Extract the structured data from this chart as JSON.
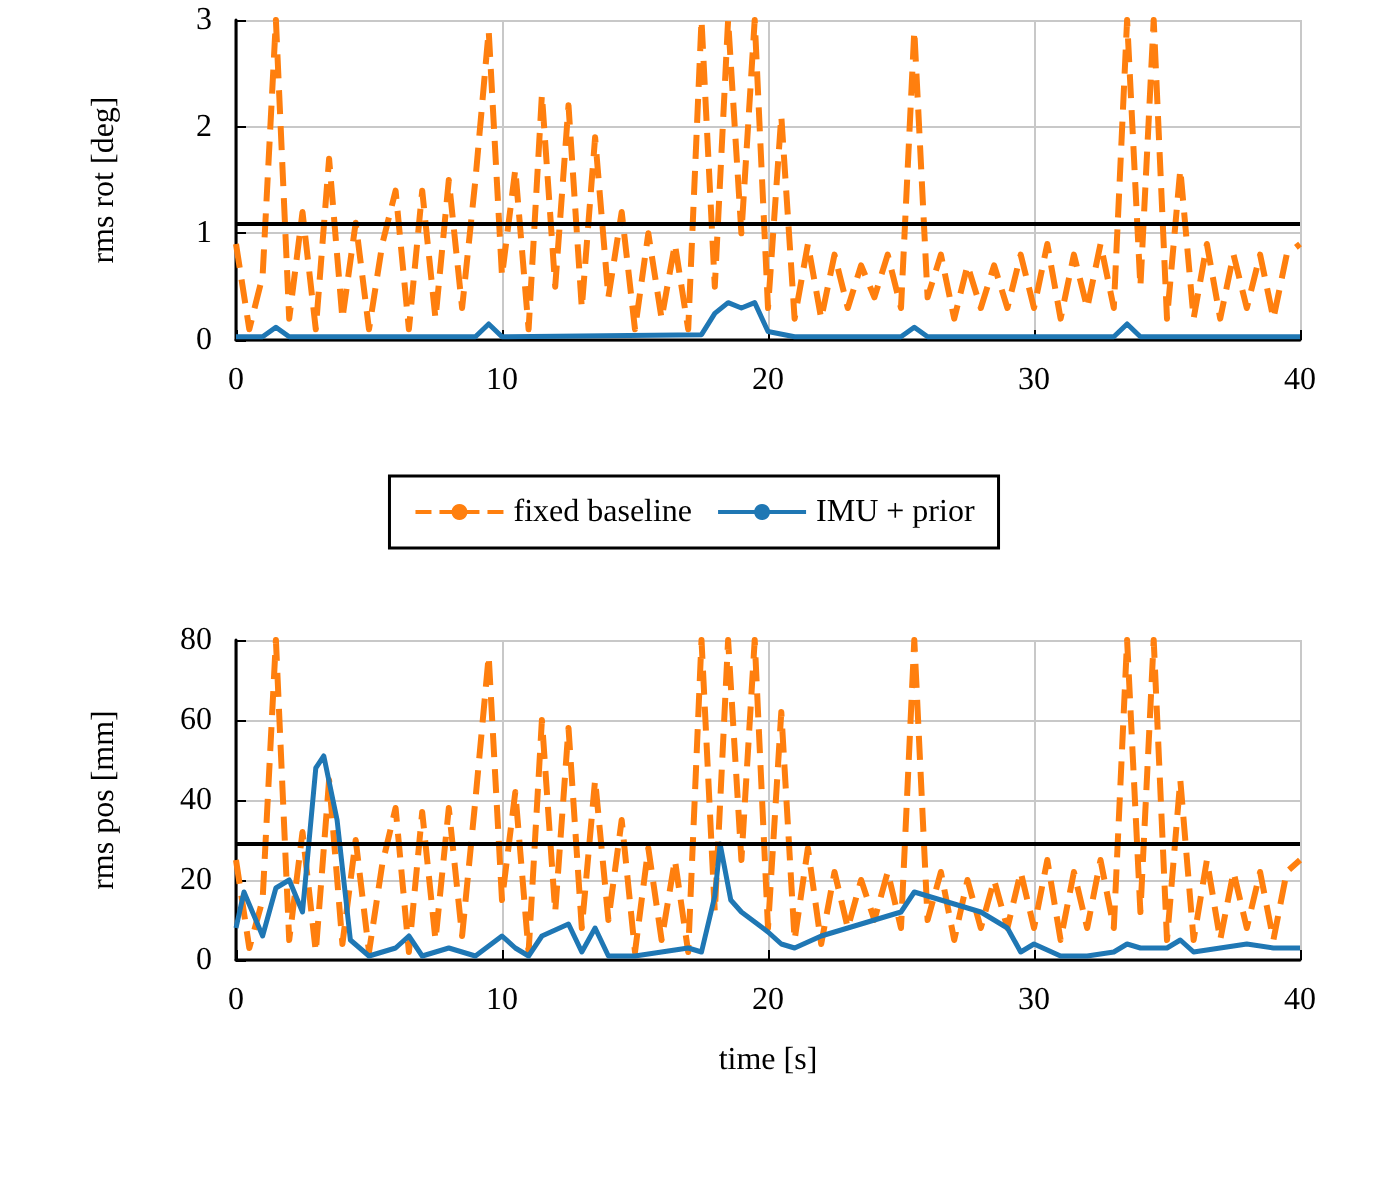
{
  "chart_data": [
    {
      "type": "line",
      "ylabel": "rms rot [deg]",
      "xlim": [
        0,
        40
      ],
      "xticks": [
        0,
        10,
        20,
        30,
        40
      ],
      "ylim": [
        0,
        3
      ],
      "yticks": [
        0,
        1,
        2,
        3
      ],
      "grid": true,
      "legend": "bottom",
      "marker": "none",
      "ref_lines": [
        {
          "axis": "y",
          "value": 1.1,
          "color": "#000000"
        }
      ],
      "series": [
        {
          "name": "fixed baseline",
          "color": "#ff7f0e",
          "line_style": "dashed",
          "x": [
            0,
            0.5,
            1,
            1.5,
            2,
            2.5,
            3,
            3.5,
            4,
            4.5,
            5,
            5.5,
            6,
            6.5,
            7,
            7.5,
            8,
            8.5,
            9,
            9.5,
            10,
            10.5,
            11,
            11.5,
            12,
            12.5,
            13,
            13.5,
            14,
            14.5,
            15,
            15.5,
            16,
            16.5,
            17,
            17.5,
            18,
            18.5,
            19,
            19.5,
            20,
            20.5,
            21,
            21.5,
            22,
            22.5,
            23,
            23.5,
            24,
            24.5,
            25,
            25.5,
            26,
            26.5,
            27,
            27.5,
            28,
            28.5,
            29,
            29.5,
            30,
            30.5,
            31,
            31.5,
            32,
            32.5,
            33,
            33.5,
            34,
            34.5,
            35,
            35.5,
            36,
            36.5,
            37,
            37.5,
            38,
            38.5,
            39,
            39.5,
            40
          ],
          "values": [
            0.9,
            0.1,
            0.6,
            3,
            0.2,
            1.2,
            0.1,
            1.7,
            0.2,
            1.1,
            0.1,
            0.9,
            1.4,
            0.1,
            1.4,
            0.2,
            1.5,
            0.3,
            1.5,
            2.9,
            0.6,
            1.6,
            0.1,
            2.3,
            0.5,
            2.2,
            0.3,
            1.9,
            0.4,
            1.2,
            0.1,
            1.0,
            0.2,
            0.9,
            0.1,
            3,
            0.5,
            3,
            1.0,
            3,
            0.3,
            2.1,
            0.2,
            0.9,
            0.2,
            0.8,
            0.3,
            0.7,
            0.4,
            0.8,
            0.3,
            2.9,
            0.4,
            0.8,
            0.2,
            0.7,
            0.3,
            0.7,
            0.3,
            0.8,
            0.3,
            0.9,
            0.2,
            0.8,
            0.3,
            0.9,
            0.3,
            3,
            0.5,
            3,
            0.2,
            1.6,
            0.2,
            0.9,
            0.2,
            0.8,
            0.3,
            0.8,
            0.2,
            0.8,
            0.9
          ]
        },
        {
          "name": "IMU + prior",
          "color": "#1f77b4",
          "line_style": "solid",
          "x": [
            0,
            1,
            1.5,
            2,
            9,
            9.5,
            10,
            17.5,
            18,
            18.5,
            19,
            19.5,
            20,
            21,
            25,
            25.5,
            26,
            33,
            33.5,
            34,
            40
          ],
          "values": [
            0.03,
            0.03,
            0.12,
            0.03,
            0.03,
            0.15,
            0.03,
            0.05,
            0.25,
            0.35,
            0.3,
            0.35,
            0.08,
            0.03,
            0.03,
            0.12,
            0.03,
            0.03,
            0.15,
            0.03,
            0.03
          ]
        }
      ]
    },
    {
      "type": "line",
      "xlabel": "time [s]",
      "ylabel": "rms pos [mm]",
      "xlim": [
        0,
        40
      ],
      "xticks": [
        0,
        10,
        20,
        30,
        40
      ],
      "ylim": [
        0,
        80
      ],
      "yticks": [
        0,
        20,
        40,
        60,
        80
      ],
      "grid": true,
      "marker": "none",
      "ref_lines": [
        {
          "axis": "y",
          "value": 29,
          "color": "#000000"
        }
      ],
      "series": [
        {
          "color": "#ff7f0e",
          "line_style": "dashed",
          "x": [
            0,
            0.5,
            1,
            1.5,
            2,
            2.5,
            3,
            3.5,
            4,
            4.5,
            5,
            5.5,
            6,
            6.5,
            7,
            7.5,
            8,
            8.5,
            9,
            9.5,
            10,
            10.5,
            11,
            11.5,
            12,
            12.5,
            13,
            13.5,
            14,
            14.5,
            15,
            15.5,
            16,
            16.5,
            17,
            17.5,
            18,
            18.5,
            19,
            19.5,
            20,
            20.5,
            21,
            21.5,
            22,
            22.5,
            23,
            23.5,
            24,
            24.5,
            25,
            25.5,
            26,
            26.5,
            27,
            27.5,
            28,
            28.5,
            29,
            29.5,
            30,
            30.5,
            31,
            31.5,
            32,
            32.5,
            33,
            33.5,
            34,
            34.5,
            35,
            35.5,
            36,
            36.5,
            37,
            37.5,
            38,
            38.5,
            39,
            39.5,
            40
          ],
          "values": [
            25,
            3,
            15,
            80,
            5,
            32,
            2,
            45,
            4,
            30,
            2,
            24,
            38,
            2,
            37,
            5,
            38,
            6,
            40,
            76,
            15,
            42,
            2,
            60,
            12,
            58,
            8,
            45,
            10,
            35,
            2,
            28,
            5,
            25,
            2,
            80,
            12,
            80,
            25,
            80,
            8,
            62,
            5,
            28,
            4,
            22,
            8,
            20,
            10,
            22,
            8,
            80,
            10,
            22,
            5,
            20,
            8,
            20,
            8,
            22,
            8,
            25,
            5,
            22,
            8,
            25,
            8,
            80,
            12,
            80,
            5,
            45,
            5,
            25,
            5,
            22,
            8,
            22,
            5,
            22,
            25
          ]
        },
        {
          "color": "#1f77b4",
          "line_style": "solid",
          "x": [
            0,
            0.3,
            1,
            1.5,
            2,
            2.5,
            3,
            3.3,
            3.8,
            4.3,
            5,
            6,
            6.5,
            7,
            8,
            9,
            10,
            10.5,
            11,
            11.5,
            12.5,
            13,
            13.5,
            14,
            15,
            16,
            17,
            17.5,
            18,
            18.2,
            18.6,
            19,
            20,
            20.5,
            21,
            22,
            23,
            24,
            25,
            25.5,
            26,
            27,
            28,
            29,
            29.5,
            30,
            31,
            32,
            33,
            33.5,
            34,
            35,
            35.5,
            36,
            37,
            38,
            39,
            40
          ],
          "values": [
            8,
            17,
            6,
            18,
            20,
            12,
            48,
            51,
            35,
            5,
            1,
            3,
            6,
            1,
            3,
            1,
            6,
            3,
            1,
            6,
            9,
            2,
            8,
            1,
            1,
            2,
            3,
            2,
            16,
            29,
            15,
            12,
            7,
            4,
            3,
            6,
            8,
            10,
            12,
            17,
            16,
            14,
            12,
            8,
            2,
            4,
            1,
            1,
            2,
            4,
            3,
            3,
            5,
            2,
            3,
            4,
            3,
            3
          ]
        }
      ]
    }
  ]
}
